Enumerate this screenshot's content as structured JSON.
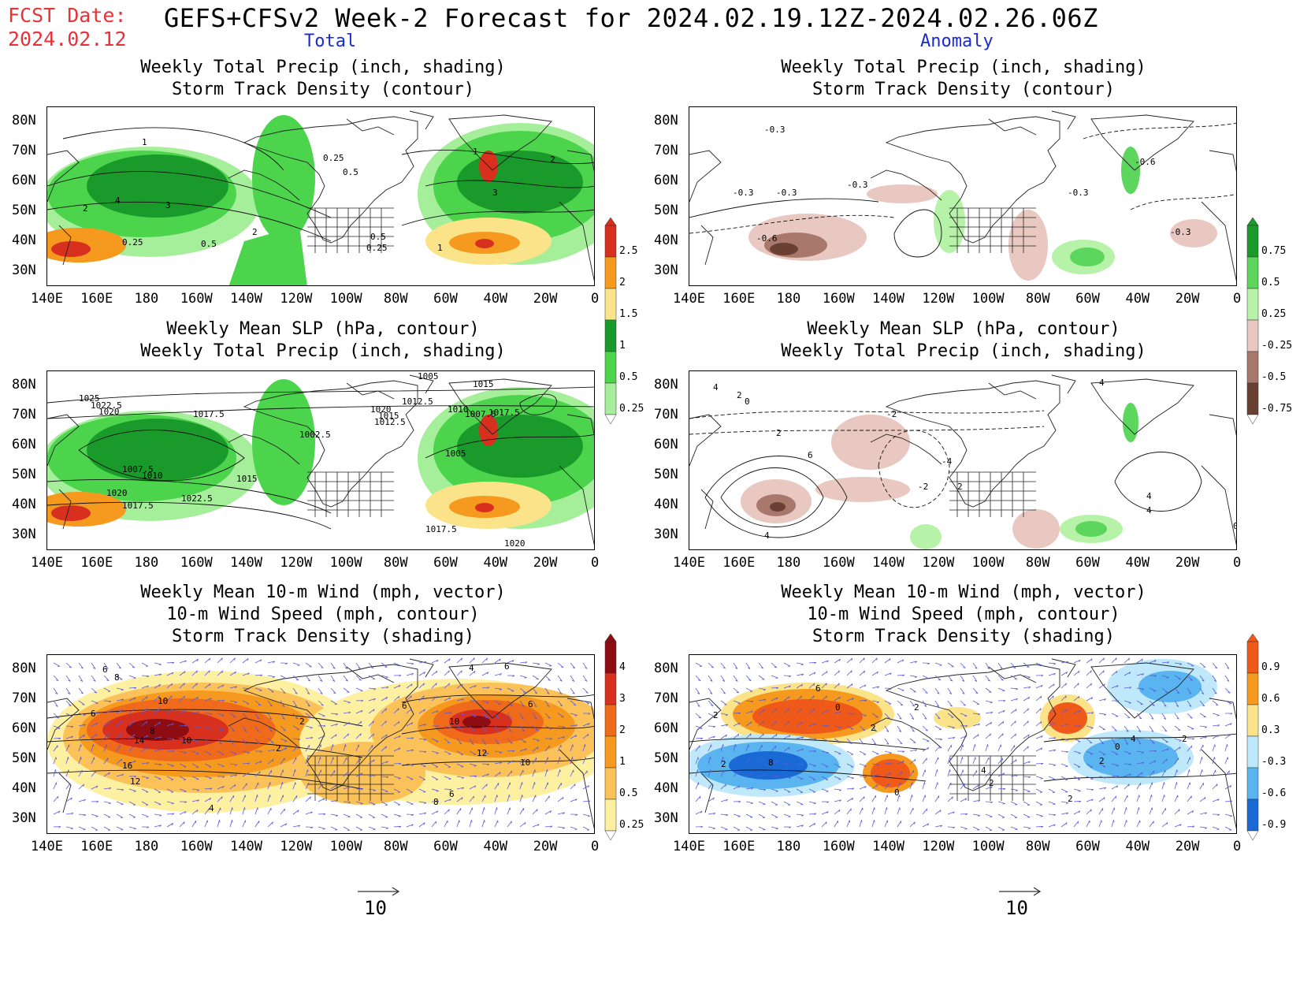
{
  "header": {
    "fcst_label": "FCST Date:",
    "fcst_date": "2024.02.12",
    "title": "GEFS+CFSv2 Week-2 Forecast for 2024.02.19.12Z-2024.02.26.06Z",
    "col_total": "Total",
    "col_anomaly": "Anomaly"
  },
  "panels": {
    "p1": {
      "title1": "Weekly Total Precip (inch, shading)",
      "title2": "Storm Track Density (contour)"
    },
    "p2": {
      "title1": "Weekly Total Precip (inch, shading)",
      "title2": "Storm Track Density (contour)"
    },
    "p3": {
      "title1": "Weekly Mean SLP (hPa, contour)",
      "title2": "Weekly Total Precip (inch, shading)"
    },
    "p4": {
      "title1": "Weekly Mean SLP (hPa, contour)",
      "title2": "Weekly Total Precip (inch, shading)"
    },
    "p5": {
      "title1": "Weekly Mean 10-m Wind (mph, vector)",
      "title2": "10-m Wind Speed (mph, contour)",
      "title3": "Storm Track Density (shading)"
    },
    "p6": {
      "title1": "Weekly Mean 10-m Wind (mph, vector)",
      "title2": "10-m Wind Speed (mph, contour)",
      "title3": "Storm Track Density (shading)"
    }
  },
  "axes": {
    "lat_labels": [
      "80N",
      "70N",
      "60N",
      "50N",
      "40N",
      "30N"
    ],
    "lon_labels": [
      "140E",
      "160E",
      "180",
      "160W",
      "140W",
      "120W",
      "100W",
      "80W",
      "60W",
      "40W",
      "20W",
      "0"
    ]
  },
  "colorbars": {
    "precip_total": {
      "levels": [
        "2.5",
        "2",
        "1.5",
        "1",
        "0.5",
        "0.25"
      ],
      "colors": [
        "#d7301f",
        "#f59a1e",
        "#fbe38a",
        "#1a9a2a",
        "#4cd44c",
        "#a5ee9a"
      ]
    },
    "precip_anom": {
      "levels": [
        "0.75",
        "0.5",
        "0.25",
        "-0.25",
        "-0.5",
        "-0.75"
      ],
      "colors": [
        "#1a9a2a",
        "#5cd65c",
        "#b6f2a8",
        "#e8c8c0",
        "#a8786c",
        "#6a4032"
      ]
    },
    "storm_total": {
      "levels": [
        "4",
        "3",
        "2",
        "1",
        "0.5",
        "0.25"
      ],
      "colors": [
        "#8e0d12",
        "#d7301f",
        "#ef6a1a",
        "#f59a1e",
        "#fbc25a",
        "#fdf0a0"
      ]
    },
    "storm_anom": {
      "levels": [
        "0.9",
        "0.6",
        "0.3",
        "-0.3",
        "-0.6",
        "-0.9"
      ],
      "colors": [
        "#ef5a1a",
        "#f59a1e",
        "#fbe38a",
        "#bfe9fa",
        "#5ab4f0",
        "#1a6ad6"
      ]
    }
  },
  "contour_labels": {
    "p1": [
      "1",
      "0.25",
      "0.5",
      "4",
      "3",
      "2",
      "0.25",
      "0.5",
      "2",
      "1",
      "3",
      "2",
      "0.5",
      "0.25",
      "1"
    ],
    "p2": [
      "-0.3",
      "-0.3",
      "-0.3",
      "-0.3",
      "-0.6",
      "-0.6",
      "-0.3",
      "-0.3"
    ],
    "p3": [
      "1025",
      "1022.5",
      "1020",
      "1017.5",
      "1012.5",
      "1005",
      "1015",
      "1002.5",
      "1007.5",
      "1010",
      "1015",
      "1020",
      "1017.5",
      "1022.5",
      "1020",
      "1015",
      "1012.5",
      "1010",
      "1007.5",
      "1017.5",
      "1005",
      "1017.5",
      "1020"
    ],
    "p4": [
      "4",
      "2",
      "0",
      "2",
      "-2",
      "6",
      "4",
      "4",
      "-4",
      "2",
      "4",
      "-2",
      "4",
      "0"
    ],
    "p5": [
      "6",
      "8",
      "10",
      "6",
      "14",
      "8",
      "10",
      "16",
      "12",
      "2",
      "2",
      "6",
      "10",
      "12",
      "10",
      "6",
      "4",
      "8",
      "6",
      "6",
      "4"
    ],
    "p6": [
      "6",
      "2",
      "0",
      "2",
      "8",
      "2",
      "2",
      "0",
      "4",
      "2",
      "2",
      "2",
      "0",
      "4",
      "2"
    ]
  },
  "reference_vector": {
    "value": "10"
  }
}
